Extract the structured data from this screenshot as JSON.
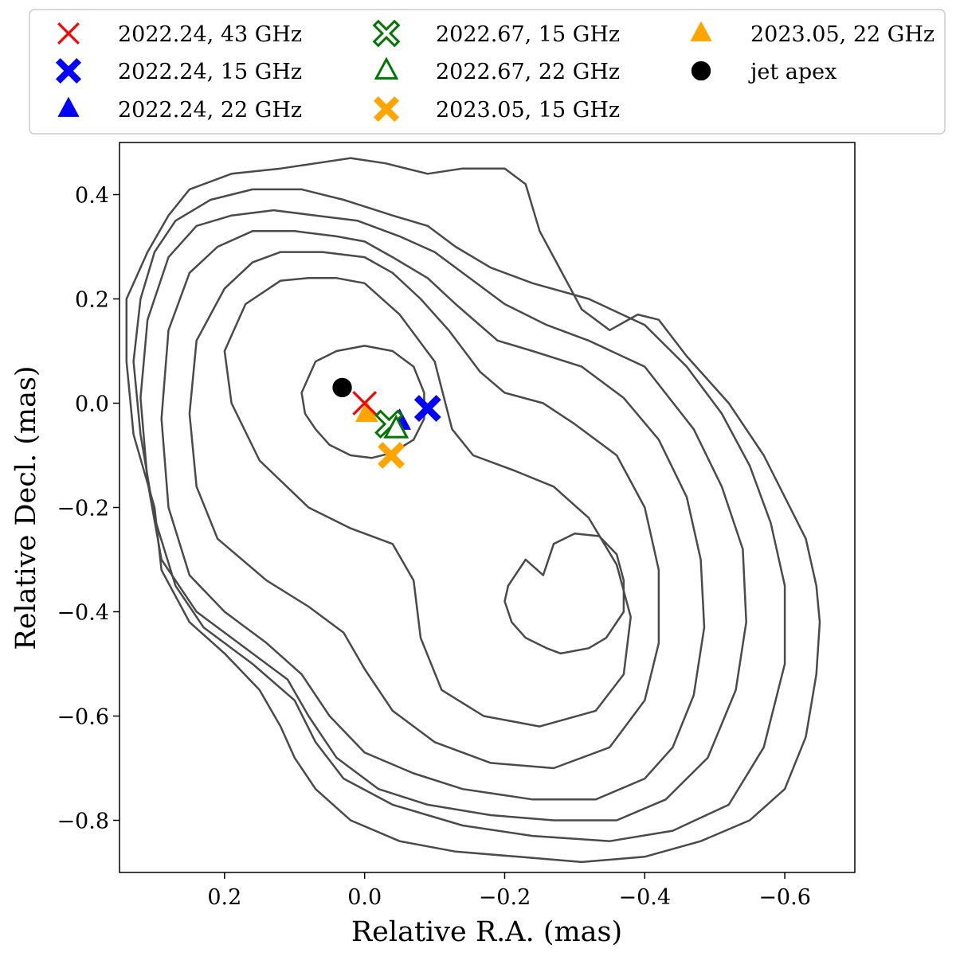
{
  "chart_data": {
    "type": "scatter",
    "title": "",
    "xlabel": "Relative R.A. (mas)",
    "ylabel": "Relative Decl. (mas)",
    "xlim": [
      0.35,
      -0.7
    ],
    "ylim": [
      -0.9,
      0.5
    ],
    "x_ticks": [
      0.2,
      0.0,
      -0.2,
      -0.4,
      -0.6
    ],
    "x_tick_labels": [
      "0.2",
      "0.0",
      "−0.2",
      "−0.4",
      "−0.6"
    ],
    "y_ticks": [
      0.4,
      0.2,
      0.0,
      -0.2,
      -0.4,
      -0.6,
      -0.8
    ],
    "y_tick_labels": [
      "0.4",
      "0.2",
      "0.0",
      "−0.2",
      "−0.4",
      "−0.6",
      "−0.8"
    ],
    "grid": false,
    "legend_placement": "top, outside plot, 3 columns",
    "contour_color": "#4a4a4a",
    "series": [
      {
        "name": "2022.24, 43 GHz",
        "marker": "x",
        "color": "#ff0000",
        "filled": false,
        "x": [
          0.0
        ],
        "y": [
          0.0
        ]
      },
      {
        "name": "2022.24, 15 GHz",
        "marker": "X",
        "color": "#0000ff",
        "filled": true,
        "x": [
          -0.09
        ],
        "y": [
          -0.01
        ]
      },
      {
        "name": "2022.24, 22 GHz",
        "marker": "triangle",
        "color": "#0000ff",
        "filled": true,
        "x": [
          -0.05
        ],
        "y": [
          -0.035
        ]
      },
      {
        "name": "2022.67, 15 GHz",
        "marker": "X",
        "color": "#007800",
        "filled": false,
        "x": [
          -0.035
        ],
        "y": [
          -0.04
        ]
      },
      {
        "name": "2022.67, 22 GHz",
        "marker": "triangle",
        "color": "#007800",
        "filled": false,
        "x": [
          -0.045
        ],
        "y": [
          -0.05
        ]
      },
      {
        "name": "2023.05, 15 GHz",
        "marker": "X",
        "color": "#ffa500",
        "filled": true,
        "x": [
          -0.038
        ],
        "y": [
          -0.1
        ]
      },
      {
        "name": "2023.05, 22 GHz",
        "marker": "triangle",
        "color": "#ffa500",
        "filled": true,
        "x": [
          -0.003
        ],
        "y": [
          -0.02
        ]
      },
      {
        "name": "jet apex",
        "marker": "circle",
        "color": "#000000",
        "filled": true,
        "x": [
          0.032
        ],
        "y": [
          0.03
        ]
      }
    ],
    "draw_order": [
      1,
      2,
      3,
      4,
      5,
      6,
      0,
      7
    ],
    "contours": [
      [
        [
          0.08,
          0.05
        ],
        [
          0.07,
          0.08
        ],
        [
          0.04,
          0.1
        ],
        [
          0.0,
          0.11
        ],
        [
          -0.04,
          0.1
        ],
        [
          -0.07,
          0.07
        ],
        [
          -0.085,
          0.02
        ],
        [
          -0.085,
          -0.03
        ],
        [
          -0.07,
          -0.07
        ],
        [
          -0.04,
          -0.095
        ],
        [
          -0.01,
          -0.105
        ],
        [
          0.02,
          -0.1
        ],
        [
          0.05,
          -0.08
        ],
        [
          0.07,
          -0.05
        ],
        [
          0.085,
          -0.02
        ],
        [
          0.09,
          0.02
        ]
      ],
      [
        [
          -0.255,
          -0.33
        ],
        [
          -0.27,
          -0.27
        ],
        [
          -0.3,
          -0.25
        ],
        [
          -0.335,
          -0.255
        ],
        [
          -0.36,
          -0.29
        ],
        [
          -0.37,
          -0.34
        ],
        [
          -0.37,
          -0.4
        ],
        [
          -0.345,
          -0.45
        ],
        [
          -0.32,
          -0.47
        ],
        [
          -0.28,
          -0.48
        ],
        [
          -0.26,
          -0.47
        ],
        [
          -0.23,
          -0.45
        ],
        [
          -0.21,
          -0.42
        ],
        [
          -0.2,
          -0.38
        ],
        [
          -0.205,
          -0.35
        ],
        [
          -0.23,
          -0.3
        ]
      ],
      [
        [
          0.08,
          0.24
        ],
        [
          0.04,
          0.24
        ],
        [
          0.0,
          0.23
        ],
        [
          -0.05,
          0.17
        ],
        [
          -0.1,
          0.08
        ],
        [
          -0.125,
          -0.05
        ],
        [
          -0.155,
          -0.1
        ],
        [
          -0.215,
          -0.13
        ],
        [
          -0.27,
          -0.16
        ],
        [
          -0.32,
          -0.22
        ],
        [
          -0.36,
          -0.31
        ],
        [
          -0.38,
          -0.41
        ],
        [
          -0.37,
          -0.52
        ],
        [
          -0.33,
          -0.59
        ],
        [
          -0.25,
          -0.62
        ],
        [
          -0.17,
          -0.6
        ],
        [
          -0.11,
          -0.55
        ],
        [
          -0.08,
          -0.45
        ],
        [
          -0.07,
          -0.34
        ],
        [
          -0.04,
          -0.27
        ],
        [
          0.02,
          -0.24
        ],
        [
          0.08,
          -0.2
        ],
        [
          0.15,
          -0.11
        ],
        [
          0.19,
          0.0
        ],
        [
          0.2,
          0.1
        ],
        [
          0.17,
          0.19
        ],
        [
          0.12,
          0.235
        ]
      ],
      [
        [
          0.12,
          0.29
        ],
        [
          0.06,
          0.29
        ],
        [
          0.0,
          0.28
        ],
        [
          -0.04,
          0.25
        ],
        [
          -0.08,
          0.2
        ],
        [
          -0.12,
          0.14
        ],
        [
          -0.165,
          0.06
        ],
        [
          -0.2,
          0.02
        ],
        [
          -0.255,
          0.0
        ],
        [
          -0.3,
          -0.04
        ],
        [
          -0.36,
          -0.1
        ],
        [
          -0.4,
          -0.2
        ],
        [
          -0.42,
          -0.32
        ],
        [
          -0.42,
          -0.46
        ],
        [
          -0.4,
          -0.57
        ],
        [
          -0.35,
          -0.66
        ],
        [
          -0.27,
          -0.7
        ],
        [
          -0.18,
          -0.69
        ],
        [
          -0.1,
          -0.65
        ],
        [
          -0.04,
          -0.59
        ],
        [
          0.0,
          -0.51
        ],
        [
          0.03,
          -0.44
        ],
        [
          0.08,
          -0.39
        ],
        [
          0.14,
          -0.34
        ],
        [
          0.21,
          -0.26
        ],
        [
          0.24,
          -0.16
        ],
        [
          0.25,
          -0.02
        ],
        [
          0.24,
          0.12
        ],
        [
          0.2,
          0.22
        ],
        [
          0.16,
          0.27
        ]
      ],
      [
        [
          0.16,
          0.33
        ],
        [
          0.1,
          0.33
        ],
        [
          0.04,
          0.32
        ],
        [
          0.0,
          0.31
        ],
        [
          -0.04,
          0.28
        ],
        [
          -0.09,
          0.24
        ],
        [
          -0.13,
          0.19
        ],
        [
          -0.19,
          0.12
        ],
        [
          -0.24,
          0.1
        ],
        [
          -0.31,
          0.07
        ],
        [
          -0.37,
          0.01
        ],
        [
          -0.42,
          -0.07
        ],
        [
          -0.46,
          -0.18
        ],
        [
          -0.48,
          -0.3
        ],
        [
          -0.485,
          -0.43
        ],
        [
          -0.47,
          -0.56
        ],
        [
          -0.44,
          -0.66
        ],
        [
          -0.4,
          -0.72
        ],
        [
          -0.33,
          -0.76
        ],
        [
          -0.24,
          -0.76
        ],
        [
          -0.14,
          -0.74
        ],
        [
          -0.07,
          -0.71
        ],
        [
          0.0,
          -0.67
        ],
        [
          0.05,
          -0.6
        ],
        [
          0.09,
          -0.52
        ],
        [
          0.14,
          -0.46
        ],
        [
          0.2,
          -0.4
        ],
        [
          0.25,
          -0.33
        ],
        [
          0.28,
          -0.2
        ],
        [
          0.29,
          -0.03
        ],
        [
          0.28,
          0.14
        ],
        [
          0.25,
          0.25
        ],
        [
          0.21,
          0.3
        ]
      ],
      [
        [
          0.19,
          0.36
        ],
        [
          0.13,
          0.37
        ],
        [
          0.07,
          0.36
        ],
        [
          0.01,
          0.35
        ],
        [
          -0.05,
          0.32
        ],
        [
          -0.1,
          0.29
        ],
        [
          -0.15,
          0.24
        ],
        [
          -0.2,
          0.19
        ],
        [
          -0.26,
          0.15
        ],
        [
          -0.32,
          0.12
        ],
        [
          -0.4,
          0.07
        ],
        [
          -0.47,
          -0.05
        ],
        [
          -0.51,
          -0.16
        ],
        [
          -0.54,
          -0.28
        ],
        [
          -0.545,
          -0.42
        ],
        [
          -0.53,
          -0.55
        ],
        [
          -0.49,
          -0.68
        ],
        [
          -0.43,
          -0.76
        ],
        [
          -0.36,
          -0.8
        ],
        [
          -0.27,
          -0.8
        ],
        [
          -0.18,
          -0.79
        ],
        [
          -0.09,
          -0.77
        ],
        [
          -0.02,
          -0.74
        ],
        [
          0.04,
          -0.68
        ],
        [
          0.08,
          -0.6
        ],
        [
          0.11,
          -0.53
        ],
        [
          0.18,
          -0.46
        ],
        [
          0.24,
          -0.4
        ],
        [
          0.29,
          -0.3
        ],
        [
          0.31,
          -0.15
        ],
        [
          0.32,
          0.01
        ],
        [
          0.31,
          0.16
        ],
        [
          0.28,
          0.28
        ],
        [
          0.24,
          0.34
        ]
      ],
      [
        [
          0.22,
          0.39
        ],
        [
          0.16,
          0.41
        ],
        [
          0.09,
          0.41
        ],
        [
          0.03,
          0.39
        ],
        [
          -0.04,
          0.36
        ],
        [
          -0.09,
          0.34
        ],
        [
          -0.13,
          0.3
        ],
        [
          -0.18,
          0.26
        ],
        [
          -0.24,
          0.23
        ],
        [
          -0.32,
          0.2
        ],
        [
          -0.4,
          0.15
        ],
        [
          -0.46,
          0.07
        ],
        [
          -0.51,
          -0.02
        ],
        [
          -0.55,
          -0.12
        ],
        [
          -0.58,
          -0.23
        ],
        [
          -0.6,
          -0.35
        ],
        [
          -0.6,
          -0.5
        ],
        [
          -0.57,
          -0.66
        ],
        [
          -0.52,
          -0.77
        ],
        [
          -0.44,
          -0.82
        ],
        [
          -0.35,
          -0.84
        ],
        [
          -0.24,
          -0.83
        ],
        [
          -0.14,
          -0.81
        ],
        [
          -0.04,
          -0.77
        ],
        [
          0.03,
          -0.72
        ],
        [
          0.07,
          -0.65
        ],
        [
          0.1,
          -0.57
        ],
        [
          0.16,
          -0.5
        ],
        [
          0.23,
          -0.43
        ],
        [
          0.27,
          -0.35
        ],
        [
          0.3,
          -0.22
        ],
        [
          0.32,
          -0.06
        ],
        [
          0.33,
          0.08
        ],
        [
          0.32,
          0.2
        ],
        [
          0.3,
          0.29
        ],
        [
          0.27,
          0.35
        ]
      ],
      [
        [
          0.25,
          0.41
        ],
        [
          0.19,
          0.44
        ],
        [
          0.12,
          0.45
        ],
        [
          0.07,
          0.46
        ],
        [
          0.02,
          0.47
        ],
        [
          -0.03,
          0.46
        ],
        [
          -0.09,
          0.44
        ],
        [
          -0.14,
          0.45
        ],
        [
          -0.2,
          0.45
        ],
        [
          -0.23,
          0.42
        ],
        [
          -0.25,
          0.33
        ],
        [
          -0.27,
          0.28
        ],
        [
          -0.31,
          0.18
        ],
        [
          -0.35,
          0.14
        ],
        [
          -0.39,
          0.17
        ],
        [
          -0.42,
          0.16
        ],
        [
          -0.46,
          0.09
        ],
        [
          -0.52,
          0.0
        ],
        [
          -0.57,
          -0.1
        ],
        [
          -0.6,
          -0.18
        ],
        [
          -0.63,
          -0.26
        ],
        [
          -0.645,
          -0.35
        ],
        [
          -0.65,
          -0.42
        ],
        [
          -0.645,
          -0.52
        ],
        [
          -0.63,
          -0.64
        ],
        [
          -0.6,
          -0.74
        ],
        [
          -0.55,
          -0.8
        ],
        [
          -0.48,
          -0.84
        ],
        [
          -0.4,
          -0.87
        ],
        [
          -0.31,
          -0.88
        ],
        [
          -0.22,
          -0.87
        ],
        [
          -0.13,
          -0.86
        ],
        [
          -0.05,
          -0.84
        ],
        [
          0.02,
          -0.8
        ],
        [
          0.07,
          -0.74
        ],
        [
          0.1,
          -0.68
        ],
        [
          0.12,
          -0.62
        ],
        [
          0.15,
          -0.55
        ],
        [
          0.2,
          -0.48
        ],
        [
          0.25,
          -0.42
        ],
        [
          0.29,
          -0.32
        ],
        [
          0.3,
          -0.2
        ],
        [
          0.33,
          -0.06
        ],
        [
          0.34,
          0.08
        ],
        [
          0.34,
          0.2
        ],
        [
          0.31,
          0.29
        ],
        [
          0.28,
          0.36
        ]
      ]
    ]
  }
}
